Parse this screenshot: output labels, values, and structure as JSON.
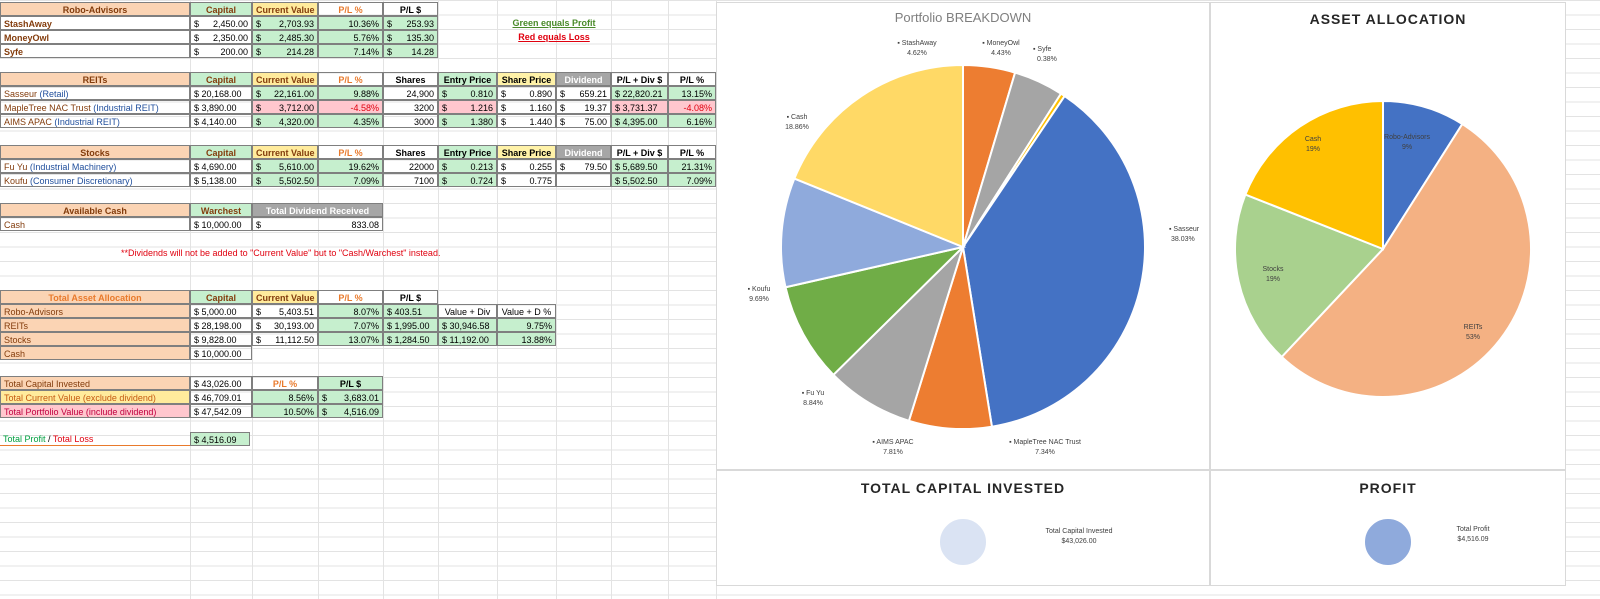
{
  "robo": {
    "headers": [
      "Robo-Advisors",
      "Capital",
      "Current Value",
      "P/L %",
      "P/L $"
    ],
    "rows": [
      [
        "StashAway",
        "$",
        "2,450.00",
        "$",
        "2,703.93",
        "10.36%",
        "$",
        "253.93"
      ],
      [
        "MoneyOwl",
        "$",
        "2,350.00",
        "$",
        "2,485.30",
        "5.76%",
        "$",
        "135.30"
      ],
      [
        "Syfe",
        "$",
        "200.00",
        "$",
        "214.28",
        "7.14%",
        "$",
        "14.28"
      ]
    ]
  },
  "legend_notes": {
    "green": "Green equals Profit",
    "red": "Red equals Loss"
  },
  "reits": {
    "headers": [
      "REITs",
      "Capital",
      "Current Value",
      "P/L %",
      "Shares",
      "Entry Price",
      "Share Price",
      "Dividend",
      "P/L + Div $",
      "P/L %"
    ],
    "rows": [
      {
        "name": "Sasseur",
        "sector": "(Retail)",
        "capital": "$ 20,168.00",
        "cur": "$",
        "curv": "22,161.00",
        "pl": "9.88%",
        "shares": "24,900",
        "ep": "$",
        "epv": "0.810",
        "sp": "$",
        "spv": "0.890",
        "div": "$",
        "divv": "659.21",
        "pld": "$ 22,820.21",
        "plp": "13.15%"
      },
      {
        "name": "MapleTree NAC Trust",
        "sector": "(Industrial REIT)",
        "capital": "$ 3,890.00",
        "cur": "$",
        "curv": "3,712.00",
        "pl": "-4.58%",
        "shares": "3200",
        "ep": "$",
        "epv": "1.216",
        "sp": "$",
        "spv": "1.160",
        "div": "$",
        "divv": "19.37",
        "pld": "$ 3,731.37",
        "plp": "-4.08%"
      },
      {
        "name": "AIMS APAC",
        "sector": "(Industrial REIT)",
        "capital": "$ 4,140.00",
        "cur": "$",
        "curv": "4,320.00",
        "pl": "4.35%",
        "shares": "3000",
        "ep": "$",
        "epv": "1.380",
        "sp": "$",
        "spv": "1.440",
        "div": "$",
        "divv": "75.00",
        "pld": "$ 4,395.00",
        "plp": "6.16%"
      }
    ]
  },
  "stocks": {
    "headers": [
      "Stocks",
      "Capital",
      "Current Value",
      "P/L %",
      "Shares",
      "Entry Price",
      "Share Price",
      "Dividend",
      "P/L + Div $",
      "P/L %"
    ],
    "rows": [
      {
        "name": "Fu Yu",
        "sector": "(Industrial Machinery)",
        "capital": "$ 4,690.00",
        "cur": "$",
        "curv": "5,610.00",
        "pl": "19.62%",
        "shares": "22000",
        "ep": "$",
        "epv": "0.213",
        "sp": "$",
        "spv": "0.255",
        "div": "$",
        "divv": "79.50",
        "pld": "$ 5,689.50",
        "plp": "21.31%"
      },
      {
        "name": "Koufu",
        "sector": "(Consumer Discretionary)",
        "capital": "$ 5,138.00",
        "cur": "$",
        "curv": "5,502.50",
        "pl": "7.09%",
        "shares": "7100",
        "ep": "$",
        "epv": "0.724",
        "sp": "$",
        "spv": "0.775",
        "div": "",
        "divv": "",
        "pld": "$ 5,502.50",
        "plp": "7.09%"
      }
    ]
  },
  "cash": {
    "headers": [
      "Available Cash",
      "Warchest",
      "Total Dividend Received"
    ],
    "row": [
      "Cash",
      "$ 10,000.00",
      "$",
      "833.08"
    ]
  },
  "note": "**Dividends will not be added to \"Current Value\" but to \"Cash/Warchest\" instead.",
  "allocation": {
    "headers": [
      "Total Asset Allocation",
      "Capital",
      "Current Value",
      "P/L %",
      "P/L $"
    ],
    "rows": [
      [
        "Robo-Advisors",
        "$ 5,000.00",
        "$",
        "5,403.51",
        "8.07%",
        "$ 403.51",
        "Value + Div",
        "Value + D %"
      ],
      [
        "REITs",
        "$ 28,198.00",
        "$",
        "30,193.00",
        "7.07%",
        "$ 1,995.00",
        "$ 30,946.58",
        "9.75%"
      ],
      [
        "Stocks",
        "$ 9,828.00",
        "$",
        "11,112.50",
        "13.07%",
        "$ 1,284.50",
        "$ 11,192.00",
        "13.88%"
      ],
      [
        "Cash",
        "$ 10,000.00",
        "",
        "",
        "",
        "",
        "",
        ""
      ]
    ]
  },
  "totals": {
    "capital_label": "Total Capital Invested",
    "capital": "$ 43,026.00",
    "h1": "P/L %",
    "h2": "P/L $",
    "cur_label": "Total Current Value (exclude dividend)",
    "cur": "$ 46,709.01",
    "cur_pl": "8.56%",
    "cur_d": "$",
    "cur_dv": "3,683.01",
    "port_label": "Total Portfolio Value (include dividend)",
    "port": "$ 47,542.09",
    "port_pl": "10.50%",
    "port_d": "$",
    "port_dv": "4,516.09",
    "profit_label_a": "Total Profit",
    "profit_sep": " / ",
    "profit_label_b": "Total Loss",
    "profit": "$ 4,516.09"
  },
  "chart_data": [
    {
      "type": "pie",
      "title": "Portfolio BREAKDOWN",
      "slices": [
        {
          "name": "StashAway",
          "pct": "4.62%",
          "value": 4.62,
          "color": "#ed7d31"
        },
        {
          "name": "MoneyOwl",
          "pct": "4.43%",
          "value": 4.43,
          "color": "#a5a5a5"
        },
        {
          "name": "Syfe",
          "pct": "0.38%",
          "value": 0.38,
          "color": "#ffc000"
        },
        {
          "name": "Sasseur",
          "pct": "38.03%",
          "value": 38.03,
          "color": "#4472c4"
        },
        {
          "name": "MapleTree NAC Trust",
          "pct": "7.34%",
          "value": 7.34,
          "color": "#ed7d31"
        },
        {
          "name": "AIMS APAC",
          "pct": "7.81%",
          "value": 7.81,
          "color": "#a5a5a5"
        },
        {
          "name": "Fu Yu",
          "pct": "8.84%",
          "value": 8.84,
          "color": "#70ad47"
        },
        {
          "name": "Koufu",
          "pct": "9.69%",
          "value": 9.69,
          "color": "#8faadc"
        },
        {
          "name": "Cash",
          "pct": "18.86%",
          "value": 18.86,
          "color": "#ffd966"
        }
      ]
    },
    {
      "type": "pie",
      "title": "ASSET ALLOCATION",
      "slices": [
        {
          "name": "Robo-Advisors",
          "pct": "9%",
          "value": 9,
          "color": "#4472c4"
        },
        {
          "name": "REITs",
          "pct": "53%",
          "value": 53,
          "color": "#f4b183"
        },
        {
          "name": "Stocks",
          "pct": "19%",
          "value": 19,
          "color": "#a9d18e"
        },
        {
          "name": "Cash",
          "pct": "19%",
          "value": 19,
          "color": "#ffc000"
        }
      ]
    },
    {
      "type": "pie",
      "title": "TOTAL CAPITAL INVESTED",
      "slices": [
        {
          "name": "Total Capital Invested",
          "pct": "$43,026.00",
          "value": 100,
          "color": "#dae3f3"
        }
      ]
    },
    {
      "type": "pie",
      "title": "PROFIT",
      "slices": [
        {
          "name": "Total Profit",
          "pct": "$4,516.09",
          "value": 100,
          "color": "#8faadc"
        }
      ]
    }
  ]
}
